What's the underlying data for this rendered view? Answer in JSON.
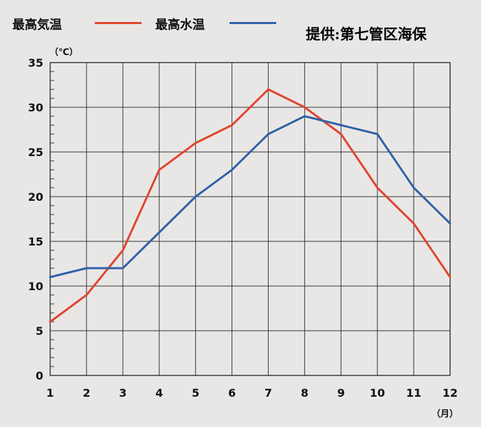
{
  "credit": "提供:第七管区海保",
  "legend": [
    {
      "label": "最高気温",
      "color": "#e0452e"
    },
    {
      "label": "最高水温",
      "color": "#2e62a8"
    }
  ],
  "chart_data": {
    "type": "line",
    "x": [
      1,
      2,
      3,
      4,
      5,
      6,
      7,
      8,
      9,
      10,
      11,
      12
    ],
    "x_tick_labels": [
      "1",
      "2",
      "3",
      "4",
      "5",
      "6",
      "7",
      "8",
      "9",
      "10",
      "11",
      "12"
    ],
    "y_tick_labels": [
      "0",
      "5",
      "10",
      "15",
      "20",
      "25",
      "30",
      "35"
    ],
    "xlabel": "（月）",
    "ylabel": "（℃）",
    "xlim": [
      1,
      12
    ],
    "ylim": [
      0,
      35
    ],
    "y_major_step": 5,
    "y_minor_step": 1,
    "grid": true,
    "legend_position": "top-left",
    "series": [
      {
        "name": "最高気温",
        "color": "#e0452e",
        "values": [
          6,
          9,
          14,
          23,
          26,
          28,
          32,
          30,
          27,
          21,
          17,
          11
        ]
      },
      {
        "name": "最高水温",
        "color": "#2e62a8",
        "values": [
          11,
          12,
          12,
          16,
          20,
          23,
          27,
          29,
          28,
          27,
          21,
          17
        ]
      }
    ]
  }
}
